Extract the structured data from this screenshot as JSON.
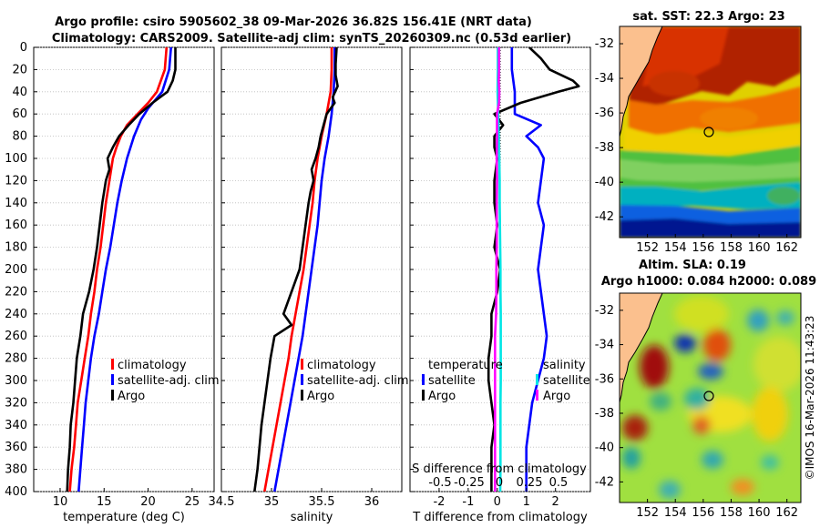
{
  "header": {
    "line1": "Argo profile: csiro 5905602_38 09-Mar-2026 36.82S 156.41E (NRT data)",
    "line2": "Climatology: CARS2009. Satellite-adj clim: synTS_20260309.nc (0.53d earlier)"
  },
  "chart_data": [
    {
      "type": "line",
      "id": "temperature",
      "xlabel": "temperature (deg C)",
      "ylabel": "",
      "xlim": [
        7,
        27.5
      ],
      "ylim": [
        400,
        0
      ],
      "xticks": [
        10,
        15,
        20,
        25
      ],
      "yticks": [
        0,
        20,
        40,
        60,
        80,
        100,
        120,
        140,
        160,
        180,
        200,
        220,
        240,
        260,
        280,
        300,
        320,
        340,
        360,
        380,
        400
      ],
      "legend": [
        "climatology",
        "satellite-adj. clim",
        "Argo"
      ],
      "series": [
        {
          "name": "climatology",
          "color": "#ff0000",
          "depth": [
            0,
            20,
            40,
            50,
            60,
            70,
            80,
            90,
            100,
            120,
            140,
            160,
            180,
            200,
            220,
            240,
            260,
            280,
            300,
            320,
            340,
            360,
            380,
            400
          ],
          "values": [
            22.1,
            21.9,
            21.0,
            20.0,
            18.8,
            17.6,
            16.9,
            16.4,
            16.0,
            15.6,
            15.2,
            14.9,
            14.6,
            14.2,
            13.9,
            13.5,
            13.2,
            12.8,
            12.4,
            12.0,
            11.8,
            11.6,
            11.3,
            11.1
          ]
        },
        {
          "name": "satellite-adj. clim",
          "color": "#0000ff",
          "depth": [
            0,
            20,
            40,
            55,
            65,
            80,
            100,
            120,
            140,
            160,
            180,
            200,
            220,
            240,
            260,
            280,
            300,
            320,
            340,
            360,
            380,
            400
          ],
          "values": [
            22.6,
            22.4,
            21.6,
            20.0,
            19.2,
            18.4,
            17.6,
            17.0,
            16.5,
            16.1,
            15.7,
            15.2,
            14.8,
            14.4,
            13.9,
            13.5,
            13.2,
            12.9,
            12.7,
            12.5,
            12.3,
            12.1
          ]
        },
        {
          "name": "Argo",
          "color": "#000000",
          "depth": [
            0,
            20,
            30,
            40,
            50,
            60,
            70,
            80,
            90,
            100,
            110,
            120,
            140,
            160,
            180,
            200,
            220,
            240,
            260,
            280,
            300,
            320,
            340,
            360,
            380,
            400
          ],
          "values": [
            23.1,
            23.1,
            22.8,
            22.2,
            20.5,
            19.0,
            17.8,
            16.7,
            16.0,
            15.4,
            15.6,
            15.2,
            14.8,
            14.5,
            14.2,
            13.8,
            13.3,
            12.6,
            12.3,
            11.9,
            11.7,
            11.5,
            11.2,
            11.1,
            10.9,
            10.8
          ]
        }
      ]
    },
    {
      "type": "line",
      "id": "salinity",
      "xlabel": "salinity",
      "ylabel": "",
      "xlim": [
        34.5,
        36.3
      ],
      "ylim": [
        400,
        0
      ],
      "xticks": [
        34.5,
        35,
        35.5,
        36
      ],
      "legend": [
        "climatology",
        "satellite-adj. clim",
        "Argo"
      ],
      "series": [
        {
          "name": "climatology",
          "color": "#ff0000",
          "depth": [
            0,
            20,
            40,
            60,
            80,
            100,
            120,
            140,
            160,
            180,
            200,
            220,
            240,
            260,
            280,
            300,
            320,
            340,
            360,
            380,
            400
          ],
          "values": [
            35.6,
            35.6,
            35.59,
            35.55,
            35.5,
            35.46,
            35.43,
            35.41,
            35.38,
            35.35,
            35.32,
            35.28,
            35.24,
            35.2,
            35.17,
            35.13,
            35.09,
            35.05,
            35.01,
            34.97,
            34.93
          ]
        },
        {
          "name": "satellite-adj. clim",
          "color": "#0000ff",
          "depth": [
            0,
            20,
            40,
            60,
            80,
            100,
            120,
            140,
            160,
            180,
            200,
            220,
            240,
            260,
            280,
            300,
            320,
            340,
            360,
            380,
            400
          ],
          "values": [
            35.63,
            35.63,
            35.62,
            35.6,
            35.57,
            35.53,
            35.5,
            35.48,
            35.46,
            35.43,
            35.4,
            35.37,
            35.34,
            35.31,
            35.27,
            35.23,
            35.19,
            35.15,
            35.11,
            35.07,
            35.03
          ]
        },
        {
          "name": "Argo",
          "color": "#000000",
          "depth": [
            0,
            15,
            25,
            35,
            45,
            50,
            60,
            70,
            80,
            90,
            100,
            110,
            120,
            130,
            140,
            160,
            180,
            200,
            220,
            240,
            250,
            260,
            280,
            300,
            320,
            340,
            360,
            380,
            400
          ],
          "values": [
            35.65,
            35.64,
            35.64,
            35.66,
            35.61,
            35.63,
            35.55,
            35.52,
            35.49,
            35.47,
            35.44,
            35.4,
            35.42,
            35.39,
            35.37,
            35.34,
            35.31,
            35.28,
            35.2,
            35.12,
            35.2,
            35.03,
            34.99,
            34.96,
            34.93,
            34.9,
            34.88,
            34.86,
            34.83
          ]
        }
      ]
    },
    {
      "type": "line",
      "id": "difference",
      "xlabel": "T difference from climatology",
      "xlim": [
        -3,
        3.2
      ],
      "ylim": [
        400,
        0
      ],
      "xticks": [
        -2,
        -1,
        0,
        1,
        2
      ],
      "secondary_xlabel": "S difference from climatology",
      "secondary_xticks": [
        "-0.5",
        "-0.25",
        "0",
        "0.25",
        "0.5"
      ],
      "legend_left_title": "temperature",
      "legend_right_title": "salinity",
      "legend_left": [
        "satellite",
        "Argo"
      ],
      "legend_right": [
        "satellite",
        "Argo"
      ],
      "series": [
        {
          "name": "temperature satellite",
          "color": "#0000ff",
          "depth": [
            0,
            20,
            40,
            60,
            70,
            80,
            90,
            100,
            120,
            140,
            160,
            180,
            200,
            220,
            240,
            260,
            280,
            300,
            320,
            340,
            360,
            380,
            400
          ],
          "values": [
            0.5,
            0.5,
            0.6,
            0.6,
            1.5,
            1.0,
            1.4,
            1.6,
            1.5,
            1.4,
            1.6,
            1.5,
            1.4,
            1.5,
            1.6,
            1.7,
            1.6,
            1.4,
            1.2,
            1.1,
            1.0,
            1.0,
            1.0
          ]
        },
        {
          "name": "temperature Argo",
          "color": "#000000",
          "depth": [
            0,
            10,
            20,
            30,
            35,
            40,
            50,
            60,
            70,
            80,
            90,
            100,
            120,
            140,
            160,
            180,
            200,
            220,
            240,
            260,
            280,
            300,
            320,
            340,
            360,
            380,
            400
          ],
          "values": [
            1.1,
            1.5,
            1.8,
            2.6,
            2.8,
            2.1,
            0.8,
            -0.1,
            0.2,
            -0.1,
            -0.1,
            0.0,
            -0.1,
            -0.1,
            0.0,
            -0.1,
            0.1,
            0.0,
            -0.2,
            -0.2,
            -0.3,
            -0.3,
            -0.2,
            -0.1,
            -0.2,
            -0.2,
            -0.2
          ]
        },
        {
          "name": "salinity satellite",
          "color": "#00e5e5",
          "depth": [
            0,
            20,
            40,
            60,
            80,
            100,
            120,
            140,
            160,
            180,
            200,
            220,
            240,
            260,
            280,
            300,
            320,
            340,
            360,
            380,
            400
          ],
          "values": [
            0.02,
            0.02,
            0.01,
            0.03,
            0.05,
            0.07,
            0.08,
            0.08,
            0.09,
            0.1,
            0.11,
            0.11,
            0.12,
            0.12,
            0.12,
            0.12,
            0.11,
            0.11,
            0.11,
            0.11,
            0.1
          ]
        },
        {
          "name": "salinity Argo",
          "color": "#ff00ff",
          "depth": [
            0,
            20,
            30,
            40,
            50,
            60,
            80,
            100,
            120,
            140,
            160,
            180,
            200,
            220,
            240,
            260,
            280,
            300,
            320,
            340,
            360,
            380,
            400
          ],
          "values": [
            0.06,
            0.06,
            0.05,
            0.07,
            0.06,
            -0.01,
            -0.01,
            -0.02,
            -0.01,
            -0.02,
            -0.02,
            -0.02,
            -0.03,
            -0.03,
            -0.04,
            -0.08,
            -0.08,
            -0.08,
            -0.08,
            -0.08,
            -0.08,
            -0.08,
            -0.08
          ]
        }
      ]
    },
    {
      "type": "heatmap",
      "id": "sst-map",
      "title": "sat. SST: 22.3 Argo: 23",
      "xticks": [
        "152",
        "154",
        "156",
        "158",
        "160",
        "162"
      ],
      "yticks": [
        "-32",
        "-34",
        "-36",
        "-38",
        "-40",
        "-42"
      ],
      "xlim": [
        150,
        163
      ],
      "ylim": [
        -43.2,
        -31.0
      ],
      "marker": {
        "lon": 156.41,
        "lat": -36.82
      }
    },
    {
      "type": "heatmap",
      "id": "sla-map",
      "title_line1": "Altim. SLA: 0.19",
      "title_line2": "Argo h1000: 0.084 h2000: 0.089",
      "xticks": [
        "152",
        "154",
        "156",
        "158",
        "160",
        "162"
      ],
      "yticks": [
        "-32",
        "-34",
        "-36",
        "-38",
        "-40",
        "-42"
      ],
      "xlim": [
        150,
        163
      ],
      "ylim": [
        -43.2,
        -31.0
      ],
      "marker": {
        "lon": 156.41,
        "lat": -36.82
      }
    }
  ],
  "footer": {
    "credit": "©IMOS 16-Mar-2026 11:43:23"
  }
}
